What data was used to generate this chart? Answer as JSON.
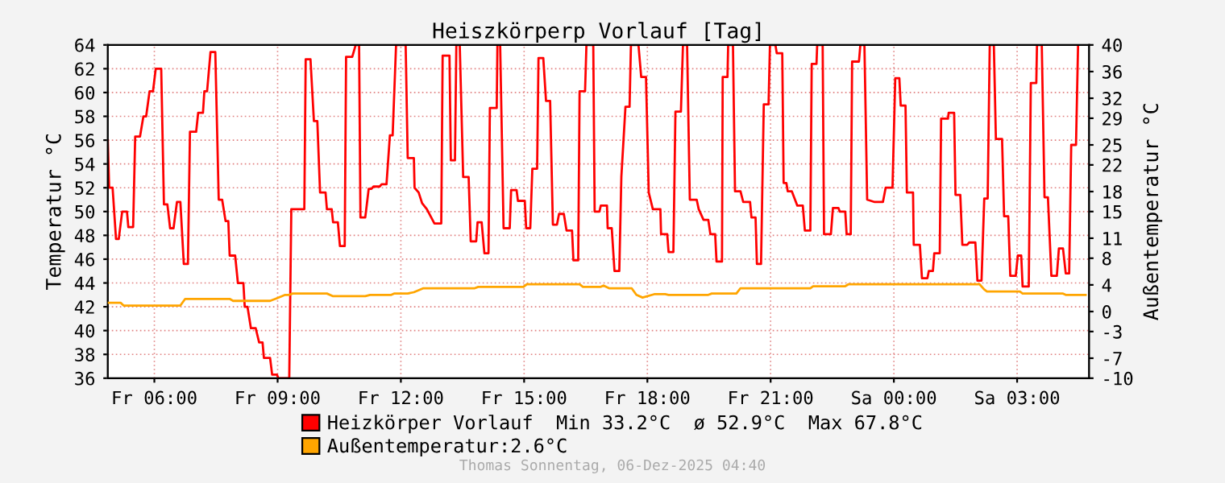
{
  "chart_data": {
    "type": "line",
    "title": "Heiszkörperp Vorlauf [Tag]",
    "ylabel": "Temperatur °C",
    "y2label": "Außentemperatur °C",
    "xlim": [
      "2025-12-05T04:52",
      "2025-12-06T04:45"
    ],
    "xticks": [
      {
        "value": "2025-12-05T06:00",
        "label": "Fr 06:00"
      },
      {
        "value": "2025-12-05T09:00",
        "label": "Fr 09:00"
      },
      {
        "value": "2025-12-05T12:00",
        "label": "Fr 12:00"
      },
      {
        "value": "2025-12-05T15:00",
        "label": "Fr 15:00"
      },
      {
        "value": "2025-12-05T18:00",
        "label": "Fr 18:00"
      },
      {
        "value": "2025-12-05T21:00",
        "label": "Fr 21:00"
      },
      {
        "value": "2025-12-06T00:00",
        "label": "Sa 00:00"
      },
      {
        "value": "2025-12-06T03:00",
        "label": "Sa 03:00"
      }
    ],
    "ylim": [
      36,
      64
    ],
    "yticks": [
      36,
      38,
      40,
      42,
      44,
      46,
      48,
      50,
      52,
      54,
      56,
      58,
      60,
      62,
      64
    ],
    "y2lim": [
      -10,
      40
    ],
    "y2ticks": [
      -10,
      -7,
      -3,
      0,
      4,
      8,
      11,
      15,
      18,
      22,
      25,
      29,
      32,
      36,
      40
    ],
    "grid": true,
    "legend": "bottom",
    "annotations": [
      "Thomas Sonnentag, 06-Dez-2025 04:40"
    ],
    "series": [
      {
        "name": "Heizkörper Vorlauf  Min 33.2°C  ø 52.9°C  Max 67.8°C",
        "color": "#ff0000",
        "x": [
          "2025-12-05T04:52",
          "2025-12-05T04:54",
          "2025-12-05T04:59",
          "2025-12-05T05:04",
          "2025-12-05T05:08",
          "2025-12-05T05:13",
          "2025-12-05T05:20",
          "2025-12-05T05:22",
          "2025-12-05T05:29",
          "2025-12-05T05:32",
          "2025-12-05T05:39",
          "2025-12-05T05:44",
          "2025-12-05T05:48",
          "2025-12-05T05:53",
          "2025-12-05T05:58",
          "2025-12-05T06:02",
          "2025-12-05T06:10",
          "2025-12-05T06:14",
          "2025-12-05T06:19",
          "2025-12-05T06:23",
          "2025-12-05T06:28",
          "2025-12-05T06:33",
          "2025-12-05T06:38",
          "2025-12-05T06:43",
          "2025-12-05T06:49",
          "2025-12-05T06:52",
          "2025-12-05T07:01",
          "2025-12-05T07:04",
          "2025-12-05T07:11",
          "2025-12-05T07:13",
          "2025-12-05T07:17",
          "2025-12-05T07:22",
          "2025-12-05T07:29",
          "2025-12-05T07:34",
          "2025-12-05T07:39",
          "2025-12-05T07:44",
          "2025-12-05T07:48",
          "2025-12-05T07:50",
          "2025-12-05T07:58",
          "2025-12-05T08:02",
          "2025-12-05T08:10",
          "2025-12-05T08:12",
          "2025-12-05T08:16",
          "2025-12-05T08:21",
          "2025-12-05T08:28",
          "2025-12-05T08:33",
          "2025-12-05T08:38",
          "2025-12-05T08:40",
          "2025-12-05T08:49",
          "2025-12-05T08:52",
          "2025-12-05T08:59",
          "2025-12-05T09:01",
          "2025-12-05T09:17",
          "2025-12-05T09:20",
          "2025-12-05T09:39",
          "2025-12-05T09:41",
          "2025-12-05T09:48",
          "2025-12-05T09:53",
          "2025-12-05T09:58",
          "2025-12-05T10:02",
          "2025-12-05T10:10",
          "2025-12-05T10:12",
          "2025-12-05T10:19",
          "2025-12-05T10:21",
          "2025-12-05T10:28",
          "2025-12-05T10:31",
          "2025-12-05T10:38",
          "2025-12-05T10:40",
          "2025-12-05T10:49",
          "2025-12-05T10:54",
          "2025-12-05T10:59",
          "2025-12-05T11:01",
          "2025-12-05T11:08",
          "2025-12-05T11:13",
          "2025-12-05T11:17",
          "2025-12-05T11:20",
          "2025-12-05T11:29",
          "2025-12-05T11:32",
          "2025-12-05T11:39",
          "2025-12-05T11:44",
          "2025-12-05T11:48",
          "2025-12-05T11:53",
          "2025-12-05T12:07",
          "2025-12-05T12:10",
          "2025-12-05T12:19",
          "2025-12-05T12:20",
          "2025-12-05T12:26",
          "2025-12-05T12:31",
          "2025-12-05T12:38",
          "2025-12-05T12:49",
          "2025-12-05T12:59",
          "2025-12-05T13:01",
          "2025-12-05T13:11",
          "2025-12-05T13:13",
          "2025-12-05T13:19",
          "2025-12-05T13:21",
          "2025-12-05T13:26",
          "2025-12-05T13:31",
          "2025-12-05T13:39",
          "2025-12-05T13:42",
          "2025-12-05T13:50",
          "2025-12-05T13:52",
          "2025-12-05T13:58",
          "2025-12-05T14:02",
          "2025-12-05T14:08",
          "2025-12-05T14:10",
          "2025-12-05T14:20",
          "2025-12-05T14:21",
          "2025-12-05T14:25",
          "2025-12-05T14:30",
          "2025-12-05T14:39",
          "2025-12-05T14:41",
          "2025-12-05T14:49",
          "2025-12-05T14:51",
          "2025-12-05T15:01",
          "2025-12-05T15:03",
          "2025-12-05T15:09",
          "2025-12-05T15:12",
          "2025-12-05T15:19",
          "2025-12-05T15:21",
          "2025-12-05T15:28",
          "2025-12-05T15:32",
          "2025-12-05T15:38",
          "2025-12-05T15:42",
          "2025-12-05T15:48",
          "2025-12-05T15:51",
          "2025-12-05T15:58",
          "2025-12-05T16:02",
          "2025-12-05T16:10",
          "2025-12-05T16:12",
          "2025-12-05T16:19",
          "2025-12-05T16:21",
          "2025-12-05T16:29",
          "2025-12-05T16:31",
          "2025-12-05T16:41",
          "2025-12-05T16:43",
          "2025-12-05T16:50",
          "2025-12-05T16:52",
          "2025-12-05T17:01",
          "2025-12-05T17:02",
          "2025-12-05T17:08",
          "2025-12-05T17:12",
          "2025-12-05T17:19",
          "2025-12-05T17:22",
          "2025-12-05T17:28",
          "2025-12-05T17:34",
          "2025-12-05T17:36",
          "2025-12-05T17:47",
          "2025-12-05T17:51",
          "2025-12-05T17:58",
          "2025-12-05T18:02",
          "2025-12-05T18:08",
          "2025-12-05T18:19",
          "2025-12-05T18:20",
          "2025-12-05T18:29",
          "2025-12-05T18:31",
          "2025-12-05T18:38",
          "2025-12-05T18:41",
          "2025-12-05T18:49",
          "2025-12-05T18:52",
          "2025-12-05T18:58",
          "2025-12-05T19:02",
          "2025-12-05T19:12",
          "2025-12-05T19:15",
          "2025-12-05T19:22",
          "2025-12-05T19:29",
          "2025-12-05T19:32",
          "2025-12-05T19:39",
          "2025-12-05T19:41",
          "2025-12-05T19:49",
          "2025-12-05T19:50",
          "2025-12-05T19:57",
          "2025-12-05T19:58",
          "2025-12-05T20:05",
          "2025-12-05T20:08",
          "2025-12-05T20:16",
          "2025-12-05T20:20",
          "2025-12-05T20:30",
          "2025-12-05T20:32",
          "2025-12-05T20:38",
          "2025-12-05T20:40",
          "2025-12-05T20:46",
          "2025-12-05T20:50",
          "2025-12-05T20:57",
          "2025-12-05T20:59",
          "2025-12-05T21:07",
          "2025-12-05T21:09",
          "2025-12-05T21:17",
          "2025-12-05T21:19",
          "2025-12-05T21:23",
          "2025-12-05T21:25",
          "2025-12-05T21:31",
          "2025-12-05T21:39",
          "2025-12-05T21:47",
          "2025-12-05T21:50",
          "2025-12-05T21:58",
          "2025-12-05T22:00",
          "2025-12-05T22:07",
          "2025-12-05T22:08",
          "2025-12-05T22:16",
          "2025-12-05T22:18",
          "2025-12-05T22:28",
          "2025-12-05T22:31",
          "2025-12-05T22:39",
          "2025-12-05T22:41",
          "2025-12-05T22:49",
          "2025-12-05T22:51",
          "2025-12-05T22:57",
          "2025-12-05T22:59",
          "2025-12-05T23:09",
          "2025-12-05T23:11",
          "2025-12-05T23:17",
          "2025-12-05T23:21",
          "2025-12-05T23:32",
          "2025-12-05T23:44",
          "2025-12-05T23:48",
          "2025-12-05T23:58",
          "2025-12-06T00:02",
          "2025-12-06T00:08",
          "2025-12-06T00:10",
          "2025-12-06T00:17",
          "2025-12-06T00:19",
          "2025-12-06T00:28",
          "2025-12-06T00:29",
          "2025-12-06T00:38",
          "2025-12-06T00:41",
          "2025-12-06T00:49",
          "2025-12-06T00:51",
          "2025-12-06T00:57",
          "2025-12-06T00:59",
          "2025-12-06T01:07",
          "2025-12-06T01:09",
          "2025-12-06T01:19",
          "2025-12-06T01:20",
          "2025-12-06T01:28",
          "2025-12-06T01:30",
          "2025-12-06T01:37",
          "2025-12-06T01:40",
          "2025-12-06T01:47",
          "2025-12-06T01:50",
          "2025-12-06T01:59",
          "2025-12-06T02:02",
          "2025-12-06T02:08",
          "2025-12-06T02:12",
          "2025-12-06T02:17",
          "2025-12-06T02:20",
          "2025-12-06T02:26",
          "2025-12-06T02:29",
          "2025-12-06T02:38",
          "2025-12-06T02:41",
          "2025-12-06T02:47",
          "2025-12-06T02:50",
          "2025-12-06T02:58",
          "2025-12-06T03:01",
          "2025-12-06T03:06",
          "2025-12-06T03:08",
          "2025-12-06T03:17",
          "2025-12-06T03:20",
          "2025-12-06T03:28",
          "2025-12-06T03:29",
          "2025-12-06T03:36",
          "2025-12-06T03:40",
          "2025-12-06T03:45",
          "2025-12-06T03:50",
          "2025-12-06T03:58",
          "2025-12-06T04:01",
          "2025-12-06T04:07",
          "2025-12-06T04:11",
          "2025-12-06T04:16",
          "2025-12-06T04:19",
          "2025-12-06T04:26",
          "2025-12-06T04:29"
        ],
        "values": [
          56,
          52,
          52,
          47.7,
          47.7,
          50,
          50,
          48.7,
          48.7,
          56.3,
          56.3,
          58,
          58,
          60.1,
          60.1,
          62,
          62,
          50.6,
          50.6,
          48.6,
          48.6,
          50.8,
          50.8,
          45.6,
          45.6,
          56.7,
          56.7,
          58.3,
          58.3,
          60.1,
          60.1,
          63.4,
          63.4,
          51,
          51,
          49.2,
          49.2,
          46.3,
          46.3,
          44,
          44,
          42,
          42,
          40.2,
          40.2,
          39,
          39,
          37.7,
          37.7,
          36.3,
          36.3,
          36,
          36,
          50.2,
          50.2,
          62.8,
          62.8,
          57.6,
          57.6,
          51.6,
          51.6,
          50.2,
          50.2,
          49.1,
          49.1,
          47.1,
          47.1,
          63,
          63,
          64,
          64,
          49.5,
          49.5,
          51.9,
          51.9,
          52.1,
          52.1,
          52.3,
          52.3,
          56.4,
          56.4,
          64,
          64,
          54.5,
          54.5,
          52.0,
          51.6,
          50.7,
          50.2,
          49.0,
          49.0,
          63.1,
          63.1,
          54.3,
          54.3,
          64,
          64,
          52.9,
          52.9,
          47.5,
          47.5,
          49.1,
          49.1,
          46.5,
          46.5,
          58.7,
          58.7,
          64,
          64,
          48.6,
          48.6,
          51.8,
          51.8,
          50.9,
          50.9,
          48.6,
          48.6,
          53.6,
          53.6,
          62.9,
          62.9,
          59.3,
          59.3,
          48.9,
          48.9,
          49.8,
          49.8,
          48.4,
          48.4,
          45.9,
          45.9,
          60.1,
          60.1,
          64,
          64,
          50.0,
          50.0,
          50.5,
          50.5,
          48.6,
          48.6,
          45.0,
          45.0,
          52.9,
          58.8,
          58.8,
          64,
          64,
          61.3,
          61.3,
          51.6,
          50.2,
          50.2,
          48.1,
          48.1,
          46.6,
          46.6,
          58.4,
          58.4,
          64,
          64,
          51.0,
          51.0,
          50.2,
          49.3,
          49.3,
          48.1,
          48.1,
          45.8,
          45.8,
          61.3,
          61.3,
          64,
          64,
          51.7,
          51.7,
          50.8,
          50.8,
          49.5,
          49.5,
          45.6,
          45.6,
          59.0,
          59.0,
          64,
          64,
          63.3,
          63.3,
          52.4,
          52.4,
          51.7,
          51.7,
          50.5,
          50.5,
          48.4,
          48.4,
          62.4,
          62.4,
          64,
          64,
          48.1,
          48.1,
          50.3,
          50.3,
          50.0,
          50.0,
          48.1,
          48.1,
          62.6,
          62.6,
          64,
          64,
          51.0,
          50.8,
          50.8,
          52.0,
          52.0,
          61.2,
          61.2,
          58.9,
          58.9,
          51.6,
          51.6,
          47.2,
          47.2,
          44.4,
          44.4,
          45.0,
          45.0,
          46.5,
          46.5,
          57.8,
          57.8,
          58.3,
          58.3,
          51.4,
          51.4,
          47.2,
          47.2,
          47.4,
          47.4,
          44.2,
          44.2,
          51.1,
          51.1,
          64,
          64,
          56.1,
          56.1,
          49.6,
          49.6,
          44.6,
          44.6,
          46.3,
          46.3,
          43.7,
          43.7,
          60.8,
          60.8,
          64,
          64,
          51.2,
          51.2,
          44.6,
          44.6,
          46.9,
          46.9,
          44.8,
          44.8,
          55.6,
          55.6,
          64
        ]
      },
      {
        "name": "Außentemperatur:2.6°C",
        "color": "#ffa500",
        "axis": "y2",
        "x": [
          "2025-12-05T04:52",
          "2025-12-05T05:11",
          "2025-12-05T05:15",
          "2025-12-05T06:38",
          "2025-12-05T06:45",
          "2025-12-05T07:50",
          "2025-12-05T07:55",
          "2025-12-05T08:49",
          "2025-12-05T08:59",
          "2025-12-05T09:11",
          "2025-12-05T09:17",
          "2025-12-05T09:22",
          "2025-12-05T10:12",
          "2025-12-05T10:21",
          "2025-12-05T11:08",
          "2025-12-05T11:15",
          "2025-12-05T11:46",
          "2025-12-05T11:50",
          "2025-12-05T12:10",
          "2025-12-05T12:19",
          "2025-12-05T12:33",
          "2025-12-05T13:48",
          "2025-12-05T13:53",
          "2025-12-05T14:59",
          "2025-12-05T15:04",
          "2025-12-05T16:21",
          "2025-12-05T16:26",
          "2025-12-05T16:52",
          "2025-12-05T16:56",
          "2025-12-05T17:04",
          "2025-12-05T17:37",
          "2025-12-05T17:44",
          "2025-12-05T17:53",
          "2025-12-05T18:10",
          "2025-12-05T18:26",
          "2025-12-05T18:31",
          "2025-12-05T19:29",
          "2025-12-05T19:34",
          "2025-12-05T20:10",
          "2025-12-05T20:16",
          "2025-12-05T21:58",
          "2025-12-05T22:02",
          "2025-12-05T22:49",
          "2025-12-05T22:54",
          "2025-12-06T02:05",
          "2025-12-06T02:12",
          "2025-12-06T02:16",
          "2025-12-06T03:04",
          "2025-12-06T03:08",
          "2025-12-06T04:07",
          "2025-12-06T04:11",
          "2025-12-06T04:40"
        ],
        "values": [
          1.3,
          1.3,
          0.9,
          0.9,
          1.9,
          1.9,
          1.6,
          1.6,
          2.0,
          2.5,
          2.5,
          2.7,
          2.7,
          2.3,
          2.3,
          2.5,
          2.5,
          2.7,
          2.7,
          2.9,
          3.5,
          3.5,
          3.7,
          3.7,
          4.1,
          4.1,
          3.7,
          3.7,
          3.9,
          3.5,
          3.5,
          2.5,
          2.1,
          2.6,
          2.6,
          2.5,
          2.5,
          2.7,
          2.7,
          3.5,
          3.5,
          3.8,
          3.8,
          4.1,
          4.1,
          3.3,
          3.0,
          3.0,
          2.7,
          2.7,
          2.5,
          2.5
        ]
      }
    ]
  }
}
